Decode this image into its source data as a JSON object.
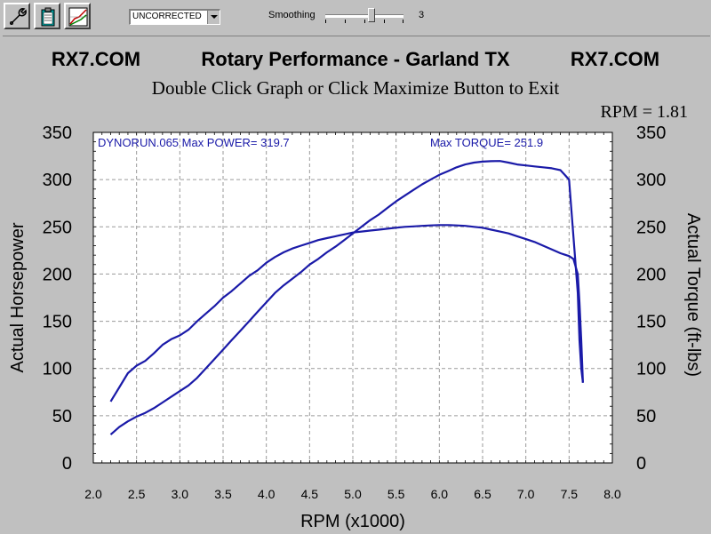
{
  "toolbar": {
    "buttons": [
      {
        "icon": "wrench-icon"
      },
      {
        "icon": "clipboard-icon"
      },
      {
        "icon": "graph-icon"
      }
    ],
    "correction_select": "UNCORRECTED",
    "smoothing_label": "Smoothing",
    "smoothing_value": "3",
    "smoothing_level_fraction": 0.6
  },
  "header": {
    "left_brand": "RX7.COM",
    "center_title": "Rotary Performance - Garland TX",
    "right_brand": "RX7.COM",
    "instruction": "Double Click Graph or Click Maximize Button to Exit",
    "rpm_readout": "RPM = 1.81"
  },
  "colors": {
    "background": "#c0c0c0",
    "plot_background": "#ffffff",
    "curve": "#1a1aa8",
    "info_text": "#1a1aa8"
  },
  "chart_data": {
    "type": "line",
    "run_label": "DYNORUN.065  Max POWER= 319.7",
    "max_torque_label": "Max TORQUE= 251.9",
    "xlabel": "RPM (x1000)",
    "ylabel_left": "Actual Horsepower",
    "ylabel_right": "Actual Torque (ft-lbs)",
    "xlim": [
      2.0,
      8.0
    ],
    "ylim": [
      0,
      350
    ],
    "x_ticks": [
      "2.0",
      "2.5",
      "3.0",
      "3.5",
      "4.0",
      "4.5",
      "5.0",
      "5.5",
      "6.0",
      "6.5",
      "7.0",
      "7.5",
      "8.0"
    ],
    "y_ticks": [
      "0",
      "50",
      "100",
      "150",
      "200",
      "250",
      "300",
      "350"
    ],
    "grid": true,
    "series": [
      {
        "x": [
          2.2,
          2.3,
          2.4,
          2.5,
          2.6,
          2.7,
          2.8,
          2.9,
          3.0,
          3.1,
          3.2,
          3.3,
          3.4,
          3.5,
          3.6,
          3.7,
          3.8,
          3.9,
          4.0,
          4.1,
          4.2,
          4.3,
          4.4,
          4.5,
          4.6,
          4.7,
          4.8,
          4.9,
          5.0,
          5.1,
          5.2,
          5.3,
          5.4,
          5.5,
          5.6,
          5.7,
          5.8,
          5.9,
          6.0,
          6.1,
          6.2,
          6.3,
          6.4,
          6.5,
          6.6,
          6.7,
          6.8,
          6.9,
          7.0,
          7.1,
          7.2,
          7.3,
          7.4,
          7.5,
          7.55,
          7.6,
          7.62,
          7.64,
          7.66
        ],
        "values": [
          30,
          38,
          44,
          49,
          53,
          58,
          64,
          70,
          76,
          82,
          90,
          100,
          110,
          120,
          130,
          140,
          150,
          160,
          170,
          180,
          188,
          195,
          202,
          210,
          216,
          223,
          229,
          236,
          243,
          250,
          257,
          263,
          270,
          277,
          283,
          289,
          295,
          300,
          305,
          309,
          313,
          316,
          318,
          319,
          319.5,
          319.7,
          318,
          316,
          315,
          314,
          313,
          312,
          310,
          300,
          240,
          180,
          130,
          100,
          85
        ]
      },
      {
        "x": [
          2.2,
          2.3,
          2.4,
          2.5,
          2.6,
          2.7,
          2.8,
          2.9,
          3.0,
          3.1,
          3.2,
          3.3,
          3.4,
          3.5,
          3.6,
          3.7,
          3.8,
          3.9,
          4.0,
          4.1,
          4.2,
          4.3,
          4.4,
          4.5,
          4.6,
          4.7,
          4.8,
          4.9,
          5.0,
          5.1,
          5.2,
          5.3,
          5.4,
          5.5,
          5.6,
          5.7,
          5.8,
          5.9,
          6.0,
          6.1,
          6.2,
          6.3,
          6.4,
          6.5,
          6.6,
          6.7,
          6.8,
          6.9,
          7.0,
          7.1,
          7.2,
          7.3,
          7.4,
          7.5,
          7.55,
          7.6,
          7.62,
          7.64,
          7.66
        ],
        "values": [
          65,
          80,
          95,
          103,
          108,
          116,
          125,
          131,
          135,
          141,
          150,
          158,
          166,
          175,
          182,
          190,
          198,
          204,
          212,
          218,
          223,
          227,
          230,
          233,
          236,
          238,
          240,
          242,
          244,
          245,
          246,
          247,
          248,
          249,
          250,
          250.5,
          251,
          251.5,
          251.9,
          251.9,
          251.5,
          251,
          250,
          249,
          247,
          245,
          243,
          240,
          237,
          234,
          230,
          226,
          222,
          219,
          216,
          200,
          170,
          130,
          85
        ]
      }
    ]
  }
}
